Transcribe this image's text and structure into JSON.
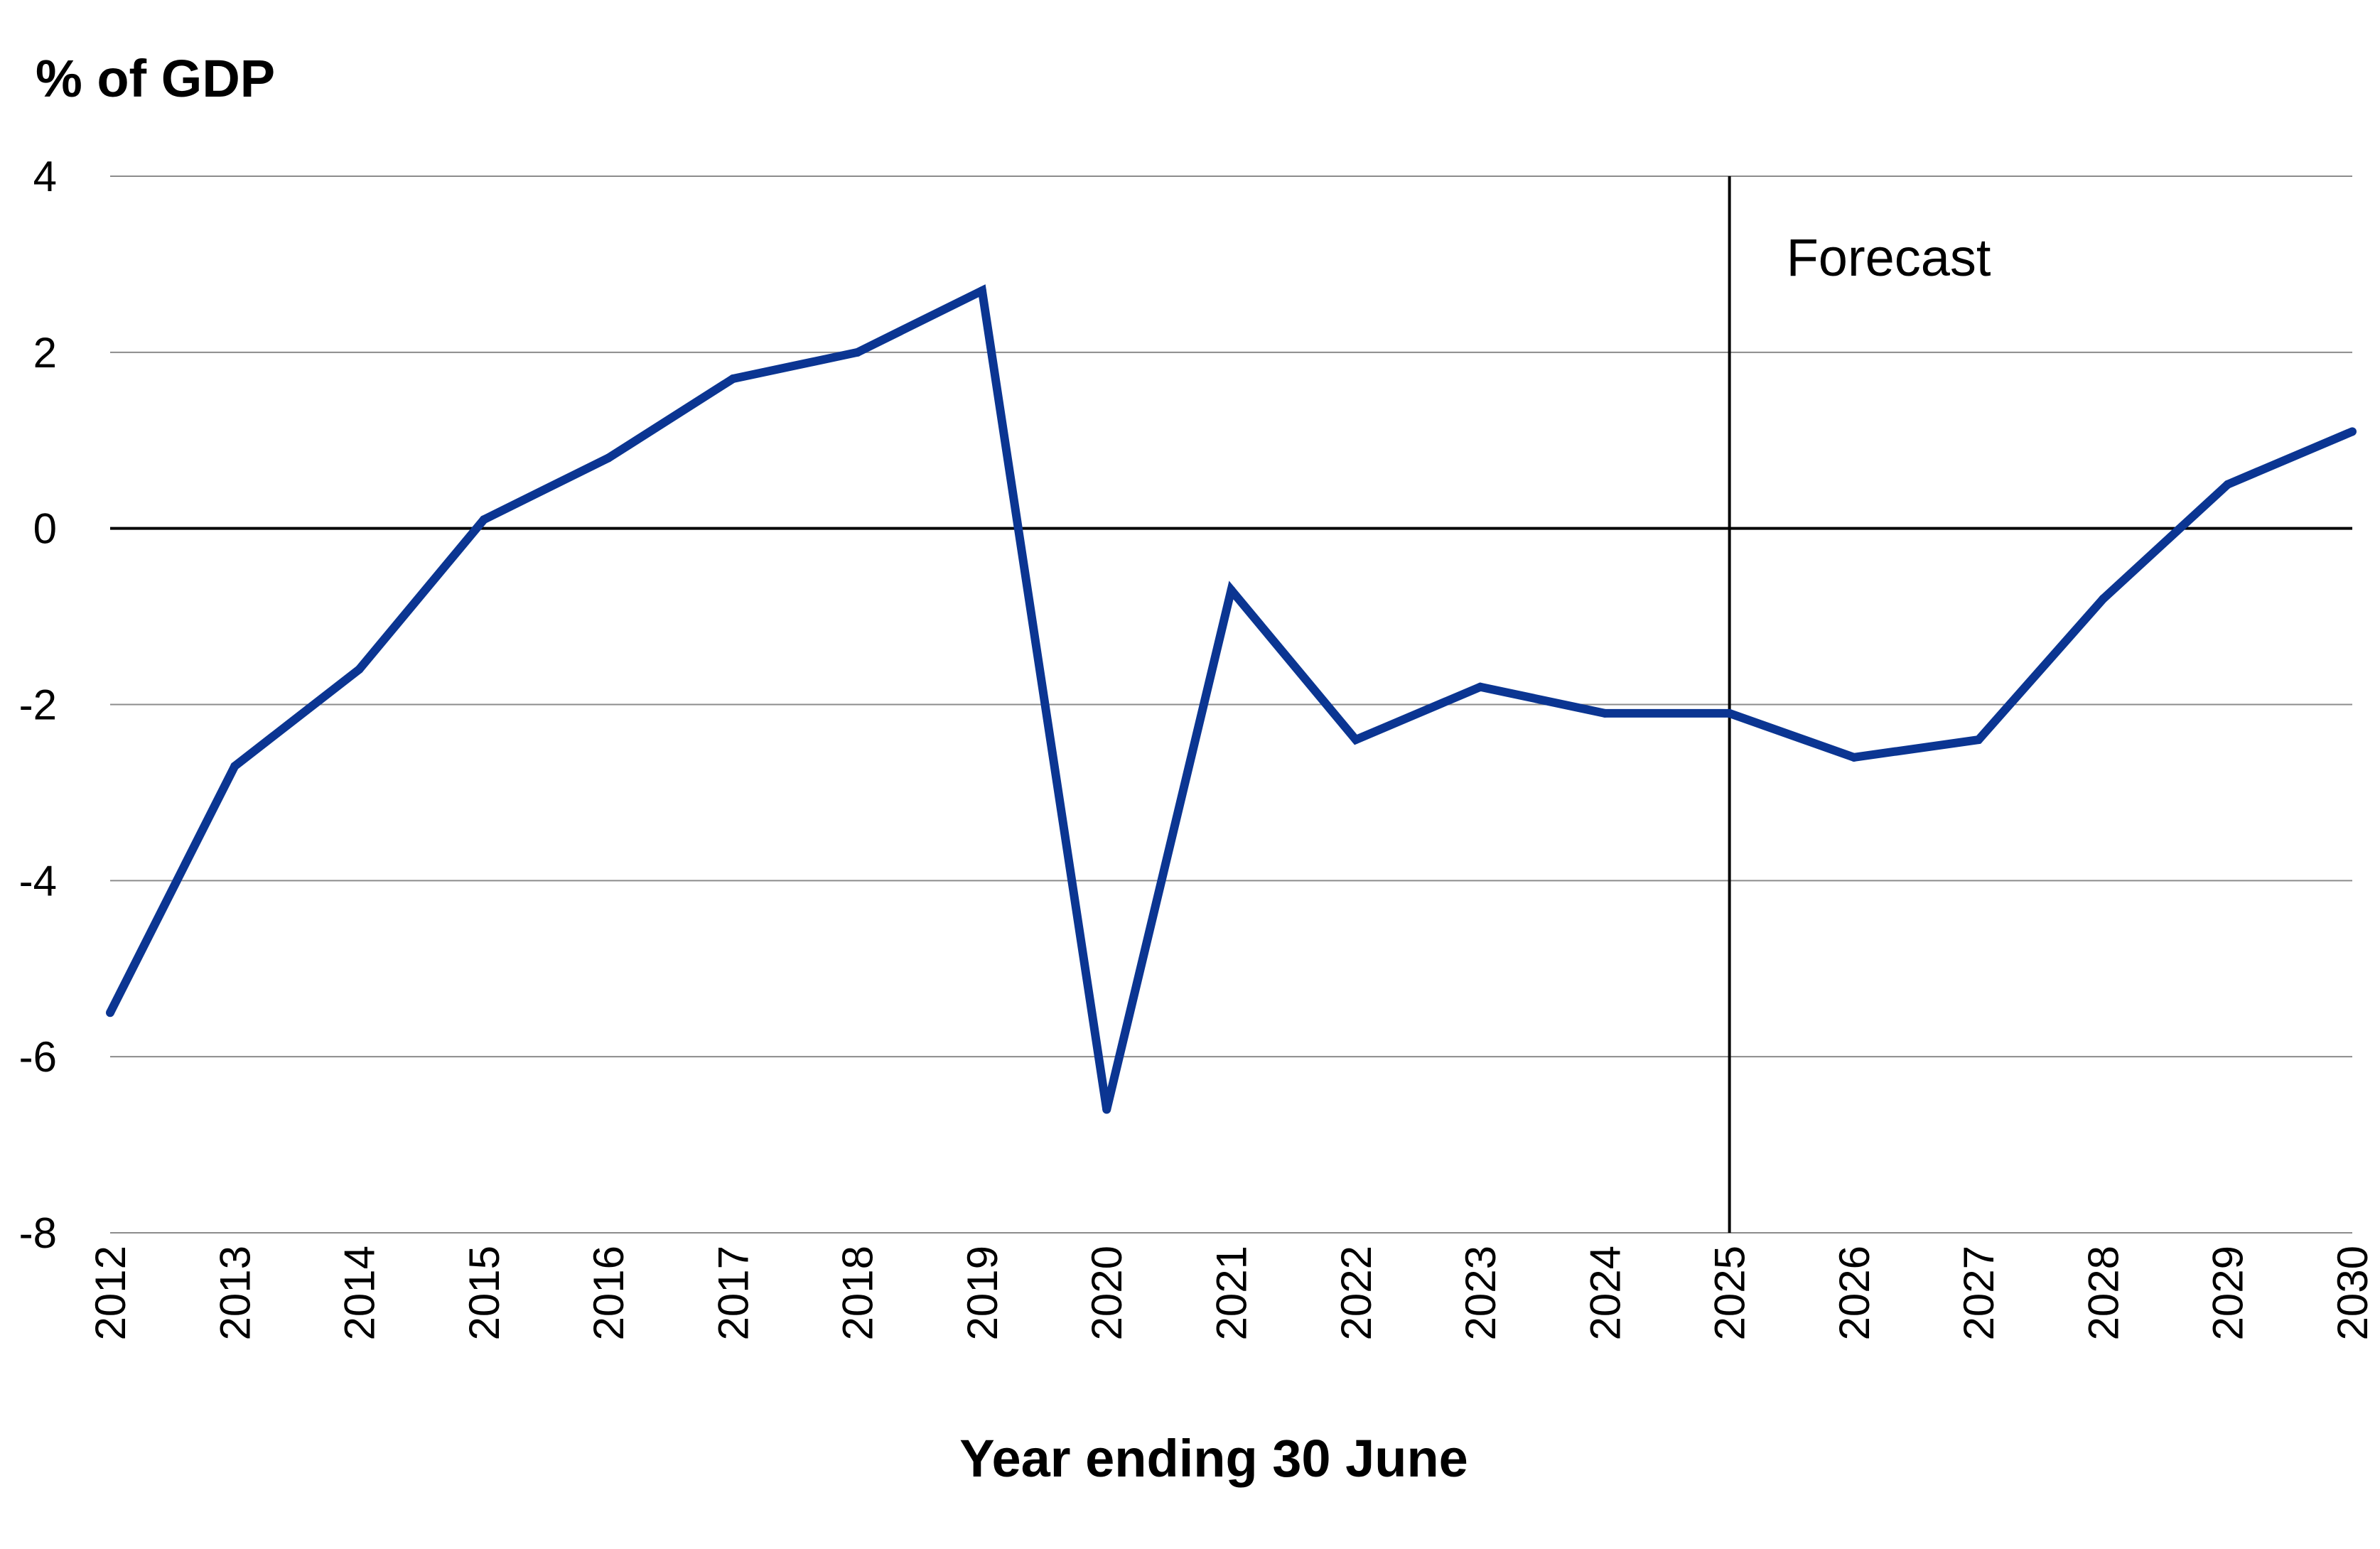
{
  "chart_data": {
    "type": "line",
    "x": [
      "2012",
      "2013",
      "2014",
      "2015",
      "2016",
      "2017",
      "2018",
      "2019",
      "2020",
      "2021",
      "2022",
      "2023",
      "2024",
      "2025",
      "2026",
      "2027",
      "2028",
      "2029",
      "2030"
    ],
    "series": [
      {
        "values": [
          -5.5,
          -2.7,
          -1.6,
          0.1,
          0.8,
          1.7,
          2.0,
          2.7,
          -6.6,
          -0.7,
          -2.4,
          -1.8,
          -2.1,
          -2.1,
          -2.6,
          -2.4,
          -0.8,
          0.5,
          1.1
        ]
      }
    ],
    "ylabel": "% of GDP",
    "xlabel": "Year ending 30 June",
    "ylim": [
      -8,
      4
    ],
    "yticks": [
      "4",
      "2",
      "0",
      "-2",
      "-4",
      "-6",
      "-8"
    ],
    "grid": true,
    "forecast_start": "2025",
    "annotation": "Forecast",
    "colors": {
      "line": "#0b3592",
      "grid": "#8c8c8c",
      "zero": "#000000"
    }
  }
}
